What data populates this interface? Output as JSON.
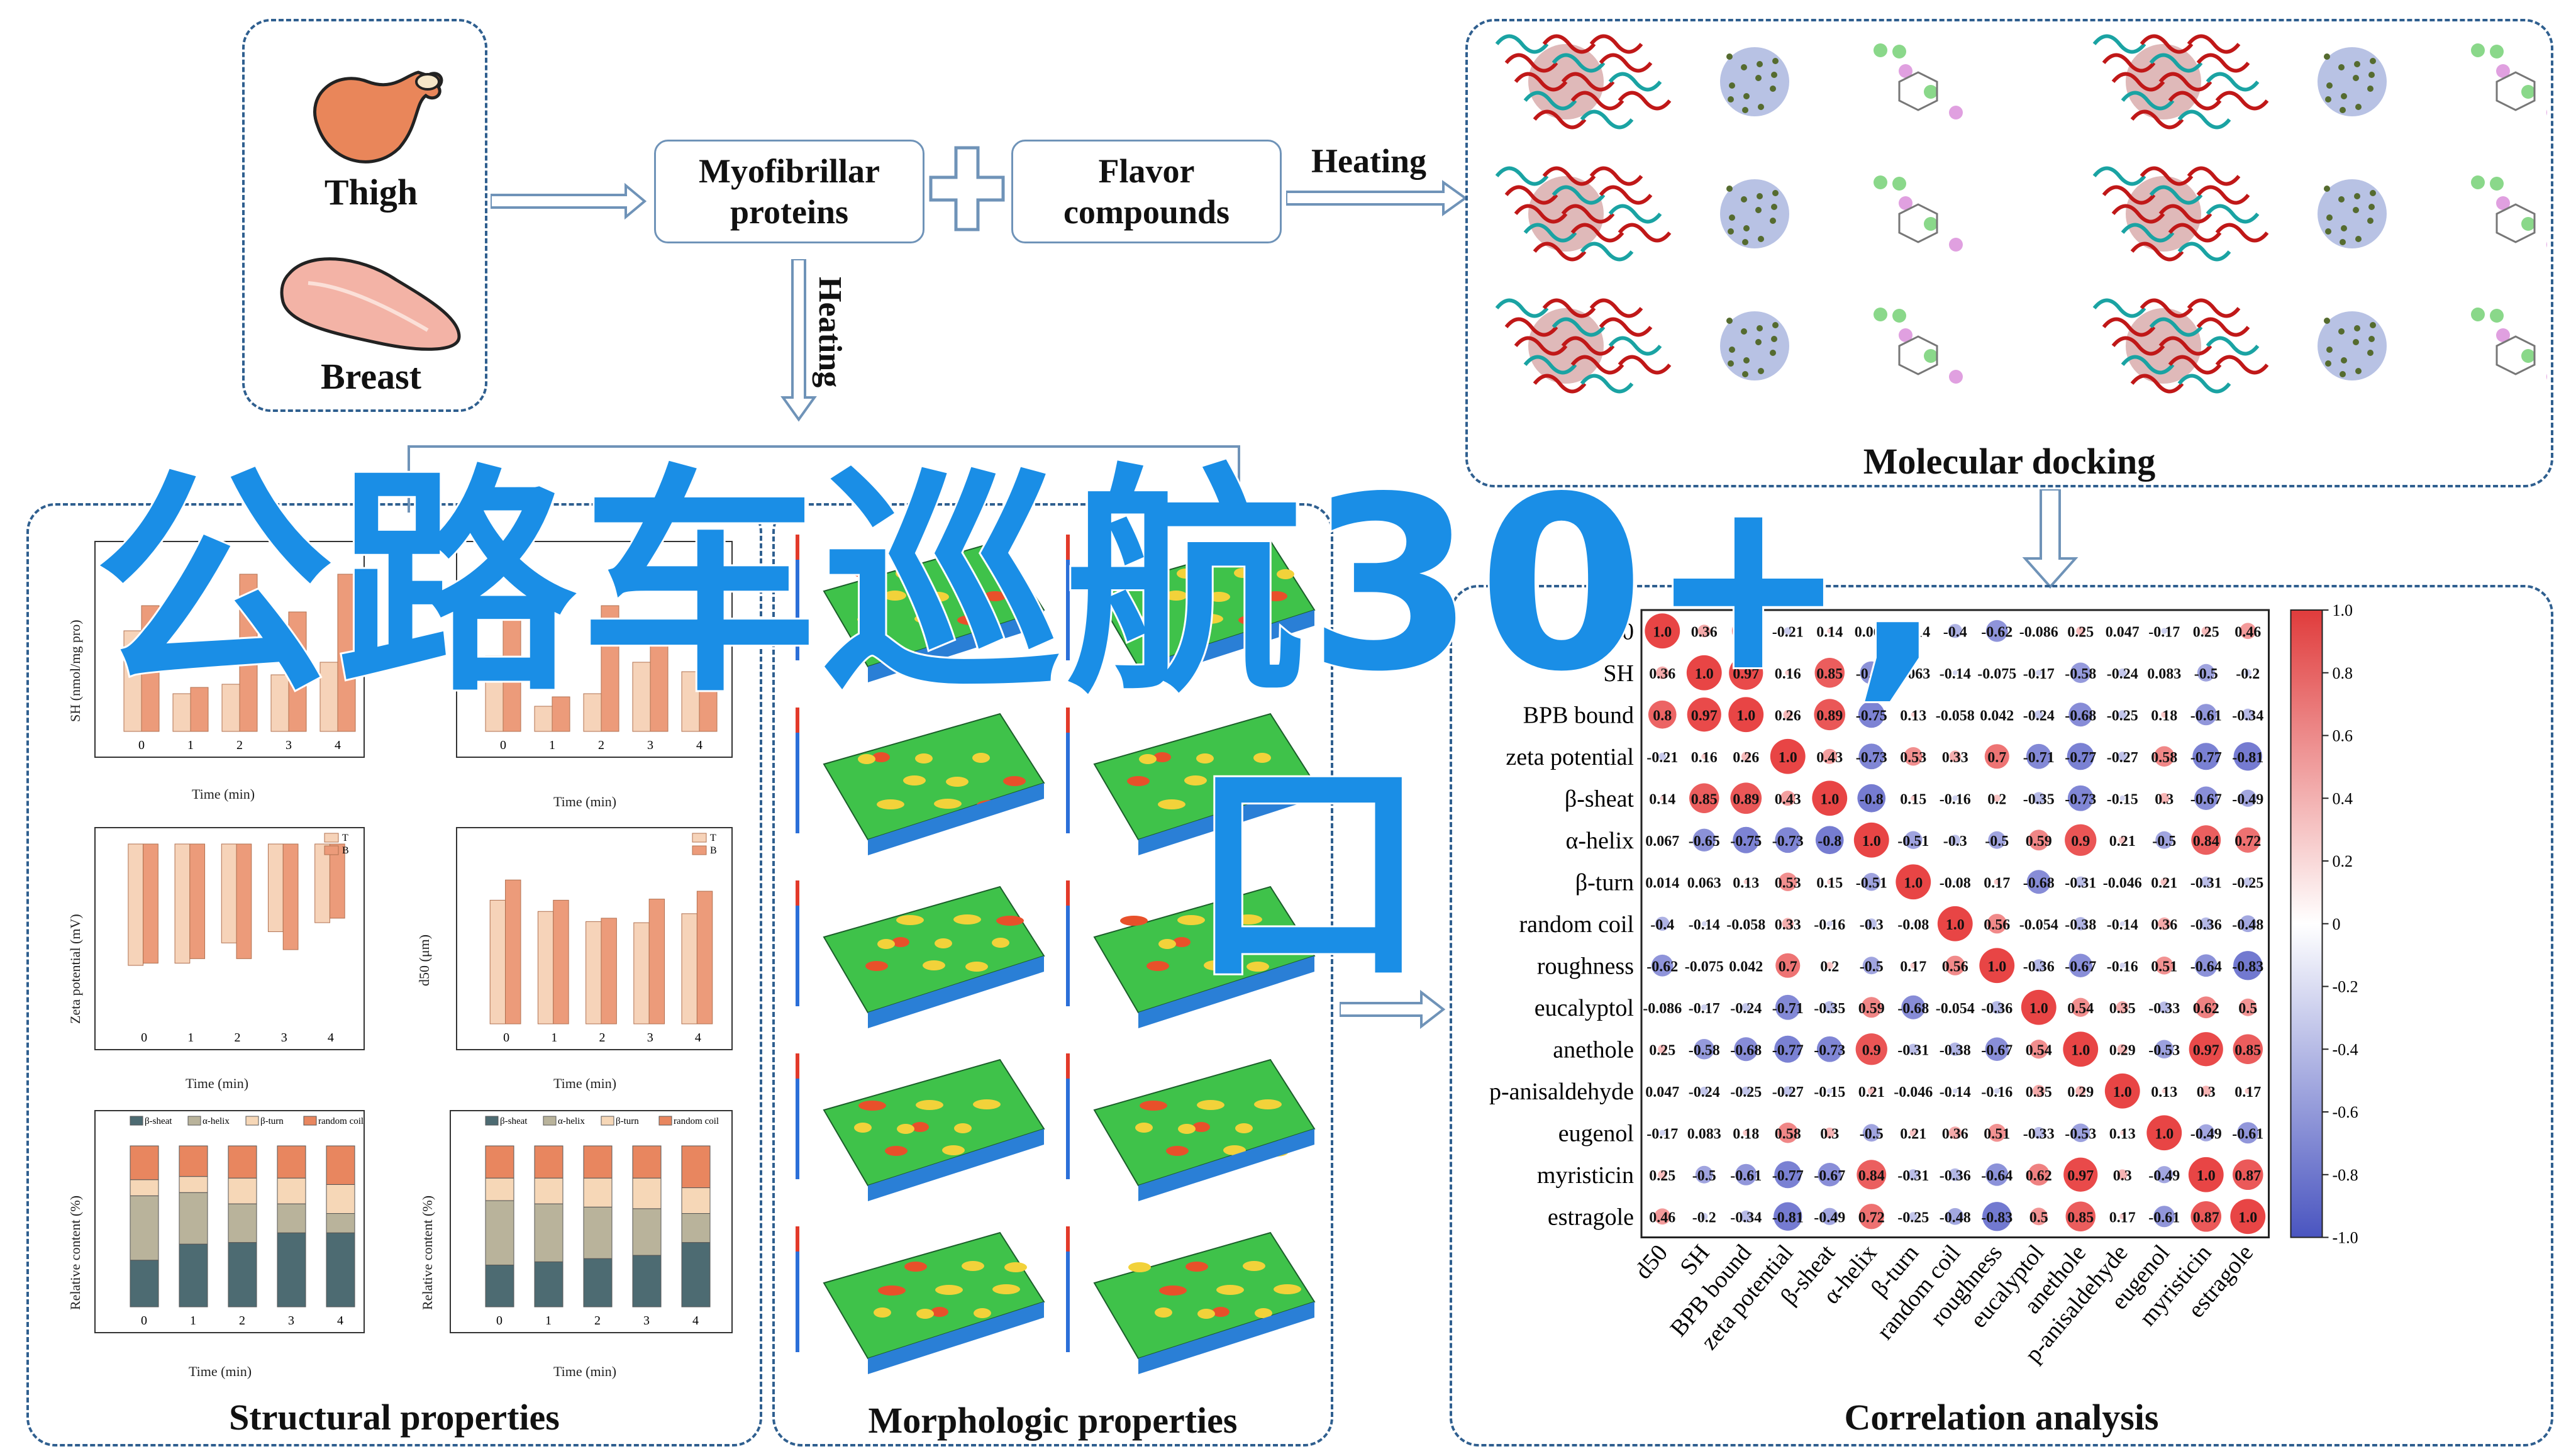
{
  "inputs": {
    "thigh_label": "Thigh",
    "breast_label": "Breast",
    "myofibrillar_label": "Myofibrillar proteins",
    "plus_symbol": "+",
    "flavor_label": "Flavor compounds",
    "heating_right_label": "Heating",
    "heating_down_label": "Heating"
  },
  "sections": {
    "molecular_docking": "Molecular docking",
    "structural": "Structural properties",
    "morphologic": "Morphologic properties",
    "correlation": "Correlation analysis"
  },
  "overlay": {
    "line1": "公路车巡航30+,",
    "line2": "口"
  },
  "structural_charts": {
    "sh_ylabel": "SH (nmol/mg pro)",
    "zeta_ylabel": "Zeta potential (mV)",
    "d50_ylabel": "d50 (μm)",
    "rel_ylabel": "Relative content (%)",
    "xlabel": "Time (min)",
    "legend_T": "T",
    "legend_B": "B",
    "legend_struct": [
      "β-sheat",
      "α-helix",
      "β-turn",
      "random coil"
    ],
    "ticks_x": [
      "0",
      "1",
      "2",
      "3",
      "4"
    ]
  },
  "chart_data": [
    {
      "type": "bar",
      "title": "",
      "xlabel": "Time (min)",
      "ylabel": "Zeta potential (mV)",
      "categories": [
        "0",
        "1",
        "2",
        "3",
        "4"
      ],
      "series": [
        {
          "name": "T",
          "values": [
            -5.4,
            -5.3,
            -4.4,
            -3.9,
            -3.5
          ]
        },
        {
          "name": "B",
          "values": [
            -5.3,
            -5.1,
            -5.1,
            -4.7,
            -3.3
          ]
        }
      ],
      "ylim": [
        -8,
        0
      ]
    },
    {
      "type": "bar",
      "title": "",
      "xlabel": "Time (min)",
      "ylabel": "d50 (μm)",
      "categories": [
        "0",
        "1",
        "2",
        "3",
        "4"
      ],
      "series": [
        {
          "name": "T",
          "values": [
            220,
            200,
            182,
            180,
            196
          ]
        },
        {
          "name": "B",
          "values": [
            256,
            220,
            188,
            222,
            236
          ]
        }
      ],
      "ylim": [
        0,
        320
      ]
    },
    {
      "type": "heatmap",
      "title": "",
      "labels": [
        "d50",
        "SH",
        "BPB bound",
        "zeta potential",
        "β-sheat",
        "α-helix",
        "β-turn",
        "random coil",
        "roughness",
        "eucalyptol",
        "anethole",
        "p-anisaldehyde",
        "eugenol",
        "myristicin",
        "estragole"
      ],
      "colorbar_ticks": [
        "1.0",
        "0.8",
        "0.6",
        "0.4",
        "0.2",
        "0",
        "-0.2",
        "-0.4",
        "-0.6",
        "-0.8",
        "-1.0"
      ],
      "matrix": [
        [
          1.0,
          0.36,
          0.8,
          -0.21,
          0.14,
          0.067,
          0.014,
          -0.4,
          -0.62,
          -0.086,
          0.25,
          0.047,
          -0.17,
          0.25,
          0.46
        ],
        [
          0.36,
          1.0,
          0.97,
          0.16,
          0.85,
          -0.65,
          0.063,
          -0.14,
          -0.075,
          -0.17,
          -0.58,
          -0.24,
          0.083,
          -0.5,
          -0.2
        ],
        [
          0.8,
          0.97,
          1.0,
          0.26,
          0.89,
          -0.75,
          0.13,
          -0.058,
          0.042,
          -0.24,
          -0.68,
          -0.25,
          0.18,
          -0.61,
          -0.34
        ],
        [
          -0.21,
          0.16,
          0.26,
          1.0,
          0.43,
          -0.73,
          0.53,
          0.33,
          0.7,
          -0.71,
          -0.77,
          -0.27,
          0.58,
          -0.77,
          -0.81
        ],
        [
          0.14,
          0.85,
          0.89,
          0.43,
          1.0,
          -0.8,
          0.15,
          -0.16,
          0.2,
          -0.35,
          -0.73,
          -0.15,
          0.3,
          -0.67,
          -0.49
        ],
        [
          0.067,
          -0.65,
          -0.75,
          -0.73,
          -0.8,
          1.0,
          -0.51,
          -0.3,
          -0.5,
          0.59,
          0.9,
          0.21,
          -0.5,
          0.84,
          0.72
        ],
        [
          0.014,
          0.063,
          0.13,
          0.53,
          0.15,
          -0.51,
          1.0,
          -0.08,
          0.17,
          -0.68,
          -0.31,
          -0.046,
          0.21,
          -0.31,
          -0.25
        ],
        [
          -0.4,
          -0.14,
          -0.058,
          0.33,
          -0.16,
          -0.3,
          -0.08,
          1.0,
          0.56,
          -0.054,
          -0.38,
          -0.14,
          0.36,
          -0.36,
          -0.48
        ],
        [
          -0.62,
          -0.075,
          0.042,
          0.7,
          0.2,
          -0.5,
          0.17,
          0.56,
          1.0,
          -0.36,
          -0.67,
          -0.16,
          0.51,
          -0.64,
          -0.83
        ],
        [
          -0.086,
          -0.17,
          -0.24,
          -0.71,
          -0.35,
          0.59,
          -0.68,
          -0.054,
          -0.36,
          1.0,
          0.54,
          0.35,
          -0.33,
          0.62,
          0.5
        ],
        [
          0.25,
          -0.58,
          -0.68,
          -0.77,
          -0.73,
          0.9,
          -0.31,
          -0.38,
          -0.67,
          0.54,
          1.0,
          0.29,
          -0.53,
          0.97,
          0.85
        ],
        [
          0.047,
          -0.24,
          -0.25,
          -0.27,
          -0.15,
          0.21,
          -0.046,
          -0.14,
          -0.16,
          0.35,
          0.29,
          1.0,
          0.13,
          0.3,
          0.17
        ],
        [
          -0.17,
          0.083,
          0.18,
          0.58,
          0.3,
          -0.5,
          0.21,
          0.36,
          0.51,
          -0.33,
          -0.53,
          0.13,
          1.0,
          -0.49,
          -0.61
        ],
        [
          0.25,
          -0.5,
          -0.61,
          -0.77,
          -0.67,
          0.84,
          -0.31,
          -0.36,
          -0.64,
          0.62,
          0.97,
          0.3,
          -0.49,
          1.0,
          0.87
        ],
        [
          0.46,
          -0.2,
          -0.34,
          -0.81,
          -0.49,
          0.72,
          -0.25,
          -0.48,
          -0.83,
          0.5,
          0.85,
          0.17,
          -0.61,
          0.87,
          1.0
        ]
      ]
    }
  ],
  "colors": {
    "dash_border": "#2f5f8f",
    "bar_T": "#f6d3b9",
    "bar_B": "#ec9b7a",
    "overlay": "#1a8ee6",
    "pos": "#e84545",
    "neg": "#5a62c8"
  }
}
